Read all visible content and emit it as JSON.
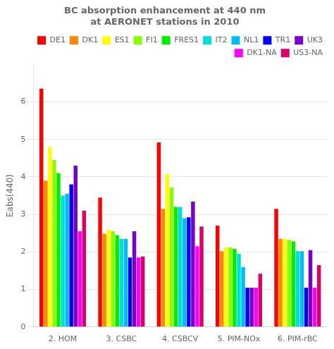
{
  "chart_data": {
    "type": "bar",
    "title": "BC absorption enhancement at 440 nm\nat AERONET stations in 2010",
    "ylabel": "Eabs(440)",
    "categories": [
      "2. HOM",
      "3. CSBC",
      "4. CSBCV",
      "5. PIM-NOx",
      "6. PIM-rBC"
    ],
    "series": [
      {
        "name": "DE1",
        "color": "#ff0000",
        "values": [
          6.35,
          3.45,
          4.92,
          2.7,
          3.15
        ]
      },
      {
        "name": "DK1",
        "color": "#ff8800",
        "values": [
          3.9,
          2.48,
          3.15,
          2.02,
          2.35
        ]
      },
      {
        "name": "ES1",
        "color": "#ffff00",
        "values": [
          4.8,
          2.6,
          4.08,
          2.12,
          2.35
        ]
      },
      {
        "name": "FI1",
        "color": "#88ff00",
        "values": [
          4.45,
          2.55,
          3.72,
          2.12,
          2.32
        ]
      },
      {
        "name": "FRES1",
        "color": "#00ee00",
        "values": [
          4.1,
          2.45,
          3.2,
          2.08,
          2.28
        ]
      },
      {
        "name": "IT2",
        "color": "#00dddd",
        "values": [
          3.5,
          2.35,
          3.2,
          1.95,
          2.02
        ]
      },
      {
        "name": "NL1",
        "color": "#00bbff",
        "values": [
          3.55,
          2.35,
          2.9,
          1.6,
          2.02
        ]
      },
      {
        "name": "TR1",
        "color": "#0000ff",
        "values": [
          3.8,
          1.85,
          2.92,
          1.05,
          1.05
        ]
      },
      {
        "name": "UK3",
        "color": "#7700cc",
        "values": [
          4.3,
          2.55,
          3.34,
          1.05,
          2.05
        ]
      },
      {
        "name": "DK1-NA",
        "color": "#ff00ff",
        "values": [
          2.55,
          1.85,
          2.15,
          1.05,
          1.05
        ]
      },
      {
        "name": "US3-NA",
        "color": "#dd0066",
        "values": [
          3.1,
          1.88,
          2.68,
          1.42,
          1.65
        ]
      }
    ],
    "ylim": [
      0,
      7.0
    ],
    "yticks": [
      0,
      1,
      2,
      3,
      4,
      5,
      6
    ],
    "grid": true,
    "legend": "upper right"
  }
}
